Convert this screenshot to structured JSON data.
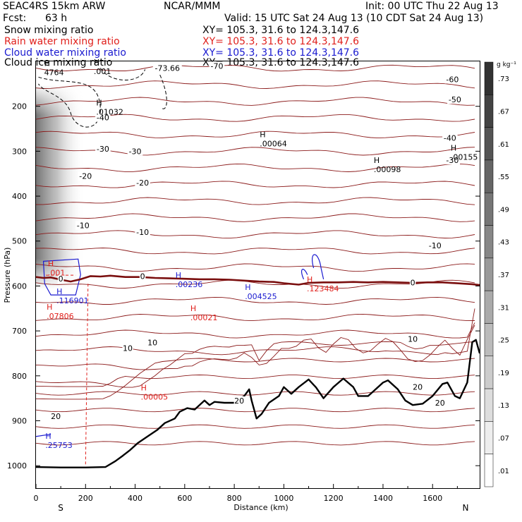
{
  "header": {
    "model": "SEAC4RS 15km ARW",
    "center": "NCAR/MMM",
    "init": "Init: 00 UTC Thu 22 Aug 13",
    "fcst_label": "Fcst:",
    "fcst_value": "63 h",
    "valid": "Valid: 15 UTC Sat 24 Aug 13 (10 CDT Sat 24 Aug 13)"
  },
  "fields": [
    {
      "label": "Snow mixing ratio",
      "xy": "XY= 105.3, 31.6 to 124.3,147.6",
      "color": "#000000"
    },
    {
      "label": "Rain water mixing ratio",
      "xy": "XY= 105.3, 31.6 to 124.3,147.6",
      "color": "#e0201c"
    },
    {
      "label": "Cloud water mixing ratio",
      "xy": "XY= 105.3, 31.6 to 124.3,147.6",
      "color": "#1a1ad0"
    },
    {
      "label": "Cloud ice mixing ratio",
      "xy": "XY= 105.3, 31.6 to 124.3,147.6",
      "color": "#000000"
    }
  ],
  "chart_data": {
    "type": "cross-section",
    "xlabel": "Distance (km)",
    "ylabel": "Pressure (hPa)",
    "xlim": [
      0,
      1790
    ],
    "ylim": [
      100,
      1050
    ],
    "x_ticks": [
      0,
      200,
      400,
      600,
      800,
      1000,
      1200,
      1400,
      1600
    ],
    "y_ticks": [
      200,
      300,
      400,
      500,
      600,
      700,
      800,
      900,
      1000
    ],
    "end_labels": {
      "left": "S",
      "right": "N"
    },
    "colorbar": {
      "unit": "g kg⁻¹",
      "labels": [
        ".73",
        ".67",
        ".61",
        ".55",
        ".49",
        ".43",
        ".37",
        ".31",
        ".25",
        ".19",
        ".13",
        ".07",
        ".01"
      ]
    },
    "temperature_contours": [
      {
        "label": "-73.66",
        "x": 530,
        "p": 115
      },
      {
        "label": "-70",
        "x": 730,
        "p": 110
      },
      {
        "label": "-60",
        "x": 1680,
        "p": 140
      },
      {
        "label": "-50",
        "x": 1690,
        "p": 185
      },
      {
        "label": "-40",
        "x": 270,
        "p": 225
      },
      {
        "label": "-40",
        "x": 1670,
        "p": 270
      },
      {
        "label": "-30",
        "x": 270,
        "p": 295
      },
      {
        "label": "-30",
        "x": 400,
        "p": 300
      },
      {
        "label": "-30",
        "x": 1680,
        "p": 320
      },
      {
        "label": "-20",
        "x": 200,
        "p": 355
      },
      {
        "label": "-20",
        "x": 430,
        "p": 370
      },
      {
        "label": "-10",
        "x": 190,
        "p": 465
      },
      {
        "label": "-10",
        "x": 430,
        "p": 480
      },
      {
        "label": "-10",
        "x": 1610,
        "p": 510
      },
      {
        "label": "0",
        "x": 100,
        "p": 584
      },
      {
        "label": "0",
        "x": 430,
        "p": 578
      },
      {
        "label": "0",
        "x": 1520,
        "p": 592
      },
      {
        "label": "10",
        "x": 370,
        "p": 738
      },
      {
        "label": "10",
        "x": 470,
        "p": 726
      },
      {
        "label": "10",
        "x": 1520,
        "p": 718
      },
      {
        "label": "20",
        "x": 820,
        "p": 855
      },
      {
        "label": "20",
        "x": 1540,
        "p": 825
      },
      {
        "label": "20",
        "x": 1630,
        "p": 860
      },
      {
        "label": "20",
        "x": 80,
        "p": 890
      }
    ],
    "maxima": [
      {
        "value": "4764",
        "x": 50,
        "p": 124,
        "color": "#000000"
      },
      {
        "value": ".001",
        "x": 250,
        "p": 122,
        "color": "#000000"
      },
      {
        "value": ".01032",
        "x": 260,
        "p": 212,
        "color": "#000000"
      },
      {
        "value": ".00064",
        "x": 920,
        "p": 283,
        "color": "#000000"
      },
      {
        "value": ".00098",
        "x": 1380,
        "p": 340,
        "color": "#000000"
      },
      {
        "value": ".00155",
        "x": 1690,
        "p": 313,
        "color": "#000000"
      },
      {
        "value": ".001",
        "x": 65,
        "p": 570,
        "color": "#e0201c"
      },
      {
        "value": ".00236",
        "x": 580,
        "p": 596,
        "color": "#1a1ad0"
      },
      {
        "value": ".004525",
        "x": 860,
        "p": 623,
        "color": "#1a1ad0"
      },
      {
        "value": ".123484",
        "x": 1110,
        "p": 606,
        "color": "#e0201c"
      },
      {
        "value": ".116901",
        "x": 100,
        "p": 632,
        "color": "#1a1ad0"
      },
      {
        "value": ".07806",
        "x": 60,
        "p": 667,
        "color": "#e0201c"
      },
      {
        "value": ".00021",
        "x": 640,
        "p": 670,
        "color": "#e0201c"
      },
      {
        "value": ".00005",
        "x": 440,
        "p": 847,
        "color": "#e0201c"
      },
      {
        "value": ".25753",
        "x": 55,
        "p": 954,
        "color": "#1a1ad0"
      }
    ],
    "terrain": {
      "x": [
        0,
        100,
        200,
        280,
        320,
        350,
        380,
        410,
        450,
        490,
        520,
        560,
        580,
        610,
        640,
        680,
        700,
        720,
        760,
        800,
        840,
        860,
        870,
        890,
        910,
        940,
        980,
        1000,
        1030,
        1060,
        1100,
        1130,
        1160,
        1200,
        1240,
        1280,
        1300,
        1340,
        1360,
        1400,
        1420,
        1460,
        1490,
        1520,
        1560,
        1600,
        1640,
        1660,
        1690,
        1710,
        1740,
        1760,
        1775,
        1790
      ],
      "p": [
        1003,
        1004,
        1004,
        1003,
        990,
        978,
        965,
        950,
        935,
        920,
        905,
        895,
        880,
        872,
        875,
        855,
        865,
        858,
        860,
        860,
        845,
        830,
        855,
        895,
        885,
        860,
        845,
        825,
        840,
        825,
        808,
        826,
        850,
        825,
        806,
        825,
        845,
        845,
        835,
        815,
        810,
        830,
        855,
        865,
        862,
        845,
        818,
        815,
        845,
        850,
        815,
        725,
        720,
        750
      ]
    },
    "freezing_level": {
      "x": [
        0,
        30,
        60,
        100,
        140,
        180,
        220,
        260,
        300,
        360,
        420,
        480,
        540,
        600,
        660,
        720,
        780,
        840,
        900,
        960,
        1000,
        1060,
        1100,
        1160,
        1220,
        1280,
        1340,
        1400,
        1460,
        1520,
        1580,
        1640,
        1700,
        1760,
        1790
      ],
      "p": [
        580,
        582,
        581,
        586,
        590,
        585,
        578,
        579,
        577,
        580,
        580,
        582,
        583,
        584,
        585,
        585,
        586,
        588,
        590,
        591,
        594,
        597,
        593,
        592,
        592,
        591,
        592,
        591,
        592,
        593,
        592,
        592,
        594,
        596,
        598
      ]
    }
  }
}
